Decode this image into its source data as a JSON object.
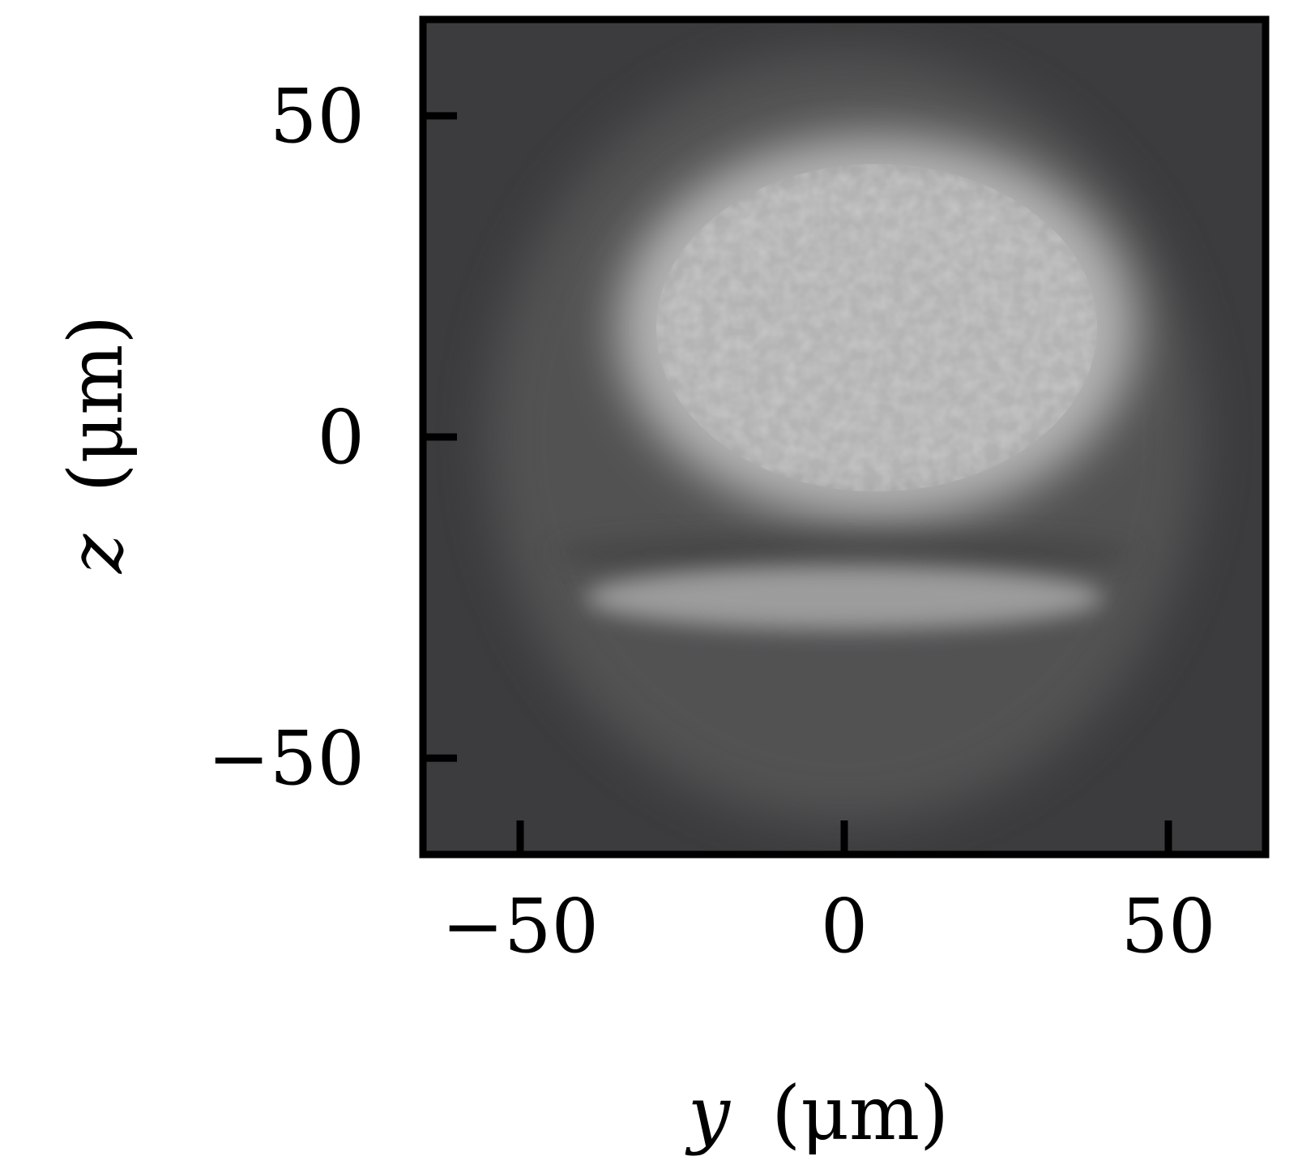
{
  "chart_data": {
    "type": "heatmap",
    "title": "",
    "xlabel": {
      "var": "y",
      "unit": "(μm)"
    },
    "ylabel": {
      "var": "z",
      "unit": "(μm)"
    },
    "xlim": [
      -65,
      65
    ],
    "ylim": [
      -65,
      65
    ],
    "xticks": [
      -50,
      0,
      50
    ],
    "yticks": [
      -50,
      0,
      50
    ],
    "xtick_labels": [
      "−50",
      "0",
      "50"
    ],
    "ytick_labels": [
      "−50",
      "0",
      "50"
    ],
    "colormap": "grayscale",
    "background_color": "#3c3c3e",
    "features": [
      {
        "name": "main-cloud",
        "y_center": 5,
        "z_center": 17,
        "y_half_width": 40,
        "z_half_width": 30,
        "peak_intensity": 0.8
      },
      {
        "name": "lower-band",
        "y_center": 0,
        "z_center": -25,
        "y_half_width": 40,
        "z_half_width": 5,
        "peak_intensity": 0.7
      },
      {
        "name": "dark-gap",
        "y_center": 0,
        "z_center": -18,
        "y_half_width": 45,
        "z_half_width": 3,
        "peak_intensity": 0.35
      },
      {
        "name": "faint-halo",
        "y_center": 0,
        "z_center": 0,
        "y_half_width": 55,
        "z_half_width": 60,
        "peak_intensity": 0.25
      }
    ],
    "grid": false,
    "legend": "none"
  }
}
